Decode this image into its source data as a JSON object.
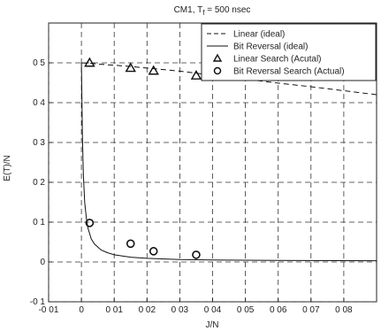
{
  "chart_data": {
    "type": "line",
    "title": "CM1, T",
    "title_sub": "f",
    "title_suffix": " = 500 nsec",
    "xlabel": "J/N",
    "ylabel": "E(T)/N",
    "xlim": [
      -0.01,
      0.09
    ],
    "ylim": [
      -0.1,
      0.6
    ],
    "xticks": [
      -0.01,
      0,
      0.01,
      0.02,
      0.03,
      0.04,
      0.05,
      0.06,
      0.07,
      0.08
    ],
    "xtick_labels": [
      "-0 01",
      "0",
      "0 01",
      "0 02",
      "0 03",
      "0 04",
      "0 05",
      "0 06",
      "0 07",
      "0 08"
    ],
    "yticks": [
      -0.1,
      0,
      0.1,
      0.2,
      0.3,
      0.4,
      0.5
    ],
    "ytick_labels": [
      "-0 1",
      "0",
      "0 1",
      "0 2",
      "0 3",
      "0 4",
      "0 5"
    ],
    "grid": true,
    "legend_position": "top-right",
    "series": [
      {
        "name": "Linear (ideal)",
        "style": "dashed",
        "x": [
          0.0,
          0.002,
          0.005,
          0.01,
          0.015,
          0.02,
          0.025,
          0.03,
          0.035,
          0.04,
          0.05,
          0.06,
          0.07,
          0.08,
          0.09
        ],
        "y": [
          0.5,
          0.499,
          0.497,
          0.494,
          0.491,
          0.487,
          0.483,
          0.479,
          0.474,
          0.469,
          0.459,
          0.449,
          0.44,
          0.43,
          0.42
        ]
      },
      {
        "name": "Bit Reversal (ideal)",
        "style": "solid",
        "x": [
          0.0,
          0.0003,
          0.0006,
          0.001,
          0.0015,
          0.002,
          0.003,
          0.004,
          0.006,
          0.008,
          0.01,
          0.015,
          0.02,
          0.03,
          0.04,
          0.06,
          0.09
        ],
        "y": [
          0.5,
          0.32,
          0.22,
          0.15,
          0.11,
          0.085,
          0.058,
          0.045,
          0.03,
          0.023,
          0.018,
          0.012,
          0.009,
          0.006,
          0.005,
          0.004,
          0.003
        ]
      },
      {
        "name": "Linear Search (Acutal)",
        "style": "triangle",
        "x": [
          0.0025,
          0.015,
          0.022,
          0.035
        ],
        "y": [
          0.5,
          0.487,
          0.48,
          0.468
        ]
      },
      {
        "name": "Bit Reversal Search (Actual)",
        "style": "circle",
        "x": [
          0.0025,
          0.015,
          0.022,
          0.035
        ],
        "y": [
          0.098,
          0.046,
          0.027,
          0.018
        ]
      }
    ]
  }
}
